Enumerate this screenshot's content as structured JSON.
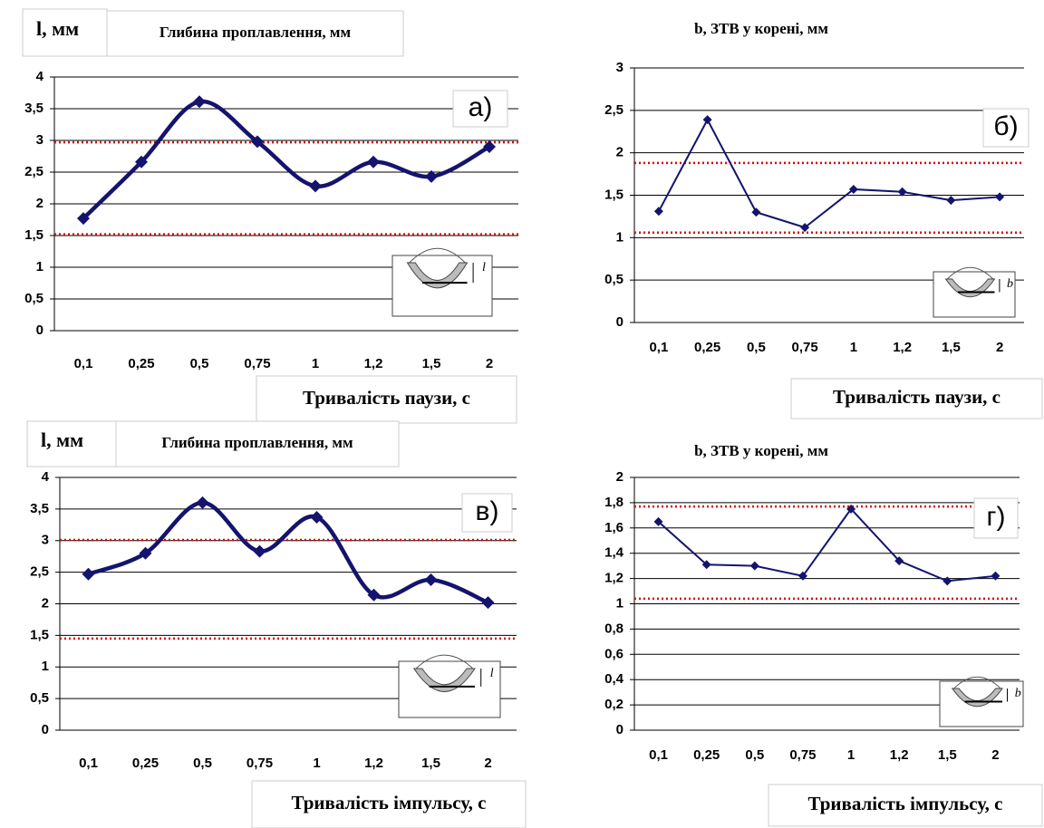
{
  "chart_data": [
    {
      "type": "line",
      "smooth": true,
      "y_label": "l, мм",
      "title": "Глибина проплавлення, мм",
      "annotation": "а)",
      "x_label": "Тривалість паузи, с",
      "inset_label": "l",
      "categories": [
        "0,1",
        "0,25",
        "0,5",
        "0,75",
        "1",
        "1,2",
        "1,5",
        "2"
      ],
      "values": [
        1.77,
        2.66,
        3.61,
        2.98,
        2.28,
        2.66,
        2.43,
        2.9
      ],
      "color": "#14146e",
      "ylim": [
        0,
        4
      ],
      "yticks": [
        0,
        {
          "value": 0.5,
          "label": "0,5"
        },
        1,
        {
          "value": 1.5,
          "label": "1,5"
        },
        2,
        {
          "value": 2.5,
          "label": "2,5"
        },
        3,
        {
          "value": 3.5,
          "label": "3,5"
        },
        4
      ],
      "grid": true,
      "reference_lines": [
        2.97,
        1.52
      ],
      "reference_color": "#e00000"
    },
    {
      "type": "line",
      "smooth": false,
      "title": "b, ЗТВ у корені, мм",
      "annotation": "б)",
      "x_label": "Тривалість паузи, с",
      "inset_label": "b",
      "categories": [
        "0,1",
        "0,25",
        "0,5",
        "0,75",
        "1",
        "1,2",
        "1,5",
        "2"
      ],
      "values": [
        1.31,
        2.39,
        1.3,
        1.12,
        1.57,
        1.54,
        1.44,
        1.48
      ],
      "color": "#14146e",
      "ylim": [
        0,
        3
      ],
      "yticks": [
        0,
        {
          "value": 0.5,
          "label": "0,5"
        },
        1,
        {
          "value": 1.5,
          "label": "1,5"
        },
        2,
        {
          "value": 2.5,
          "label": "2,5"
        },
        3
      ],
      "grid": true,
      "reference_lines": [
        1.88,
        1.06
      ],
      "reference_color": "#e00000"
    },
    {
      "type": "line",
      "smooth": true,
      "y_label": "l, мм",
      "title": "Глибина проплавлення, мм",
      "annotation": "в)",
      "x_label": "Тривалість імпульсу, с",
      "inset_label": "l",
      "categories": [
        "0,1",
        "0,25",
        "0,5",
        "0,75",
        "1",
        "1,2",
        "1,5",
        "2"
      ],
      "values": [
        2.47,
        2.8,
        3.6,
        2.83,
        3.37,
        2.14,
        2.38,
        2.02
      ],
      "color": "#14146e",
      "ylim": [
        0,
        4
      ],
      "yticks": [
        0,
        {
          "value": 0.5,
          "label": "0,5"
        },
        1,
        {
          "value": 1.5,
          "label": "1,5"
        },
        2,
        {
          "value": 2.5,
          "label": "2,5"
        },
        3,
        {
          "value": 3.5,
          "label": "3,5"
        },
        4
      ],
      "grid": true,
      "reference_lines": [
        3.01,
        1.45
      ],
      "reference_color": "#e00000"
    },
    {
      "type": "line",
      "smooth": false,
      "title": "b, ЗТВ у корені, мм",
      "annotation": "г)",
      "x_label": "Тривалість імпульсу, с",
      "inset_label": "b",
      "categories": [
        "0,1",
        "0,25",
        "0,5",
        "0,75",
        "1",
        "1,2",
        "1,5",
        "2"
      ],
      "values": [
        1.65,
        1.31,
        1.3,
        1.22,
        1.75,
        1.34,
        1.18,
        1.22
      ],
      "color": "#14146e",
      "ylim": [
        0,
        2
      ],
      "yticks": [
        0,
        {
          "value": 0.2,
          "label": "0,2"
        },
        {
          "value": 0.4,
          "label": "0,4"
        },
        {
          "value": 0.6,
          "label": "0,6"
        },
        {
          "value": 0.8,
          "label": "0,8"
        },
        1,
        {
          "value": 1.2,
          "label": "1,2"
        },
        {
          "value": 1.4,
          "label": "1,4"
        },
        {
          "value": 1.6,
          "label": "1,6"
        },
        {
          "value": 1.8,
          "label": "1,8"
        },
        2
      ],
      "grid": true,
      "reference_lines": [
        1.77,
        1.04
      ],
      "reference_color": "#e00000"
    }
  ]
}
